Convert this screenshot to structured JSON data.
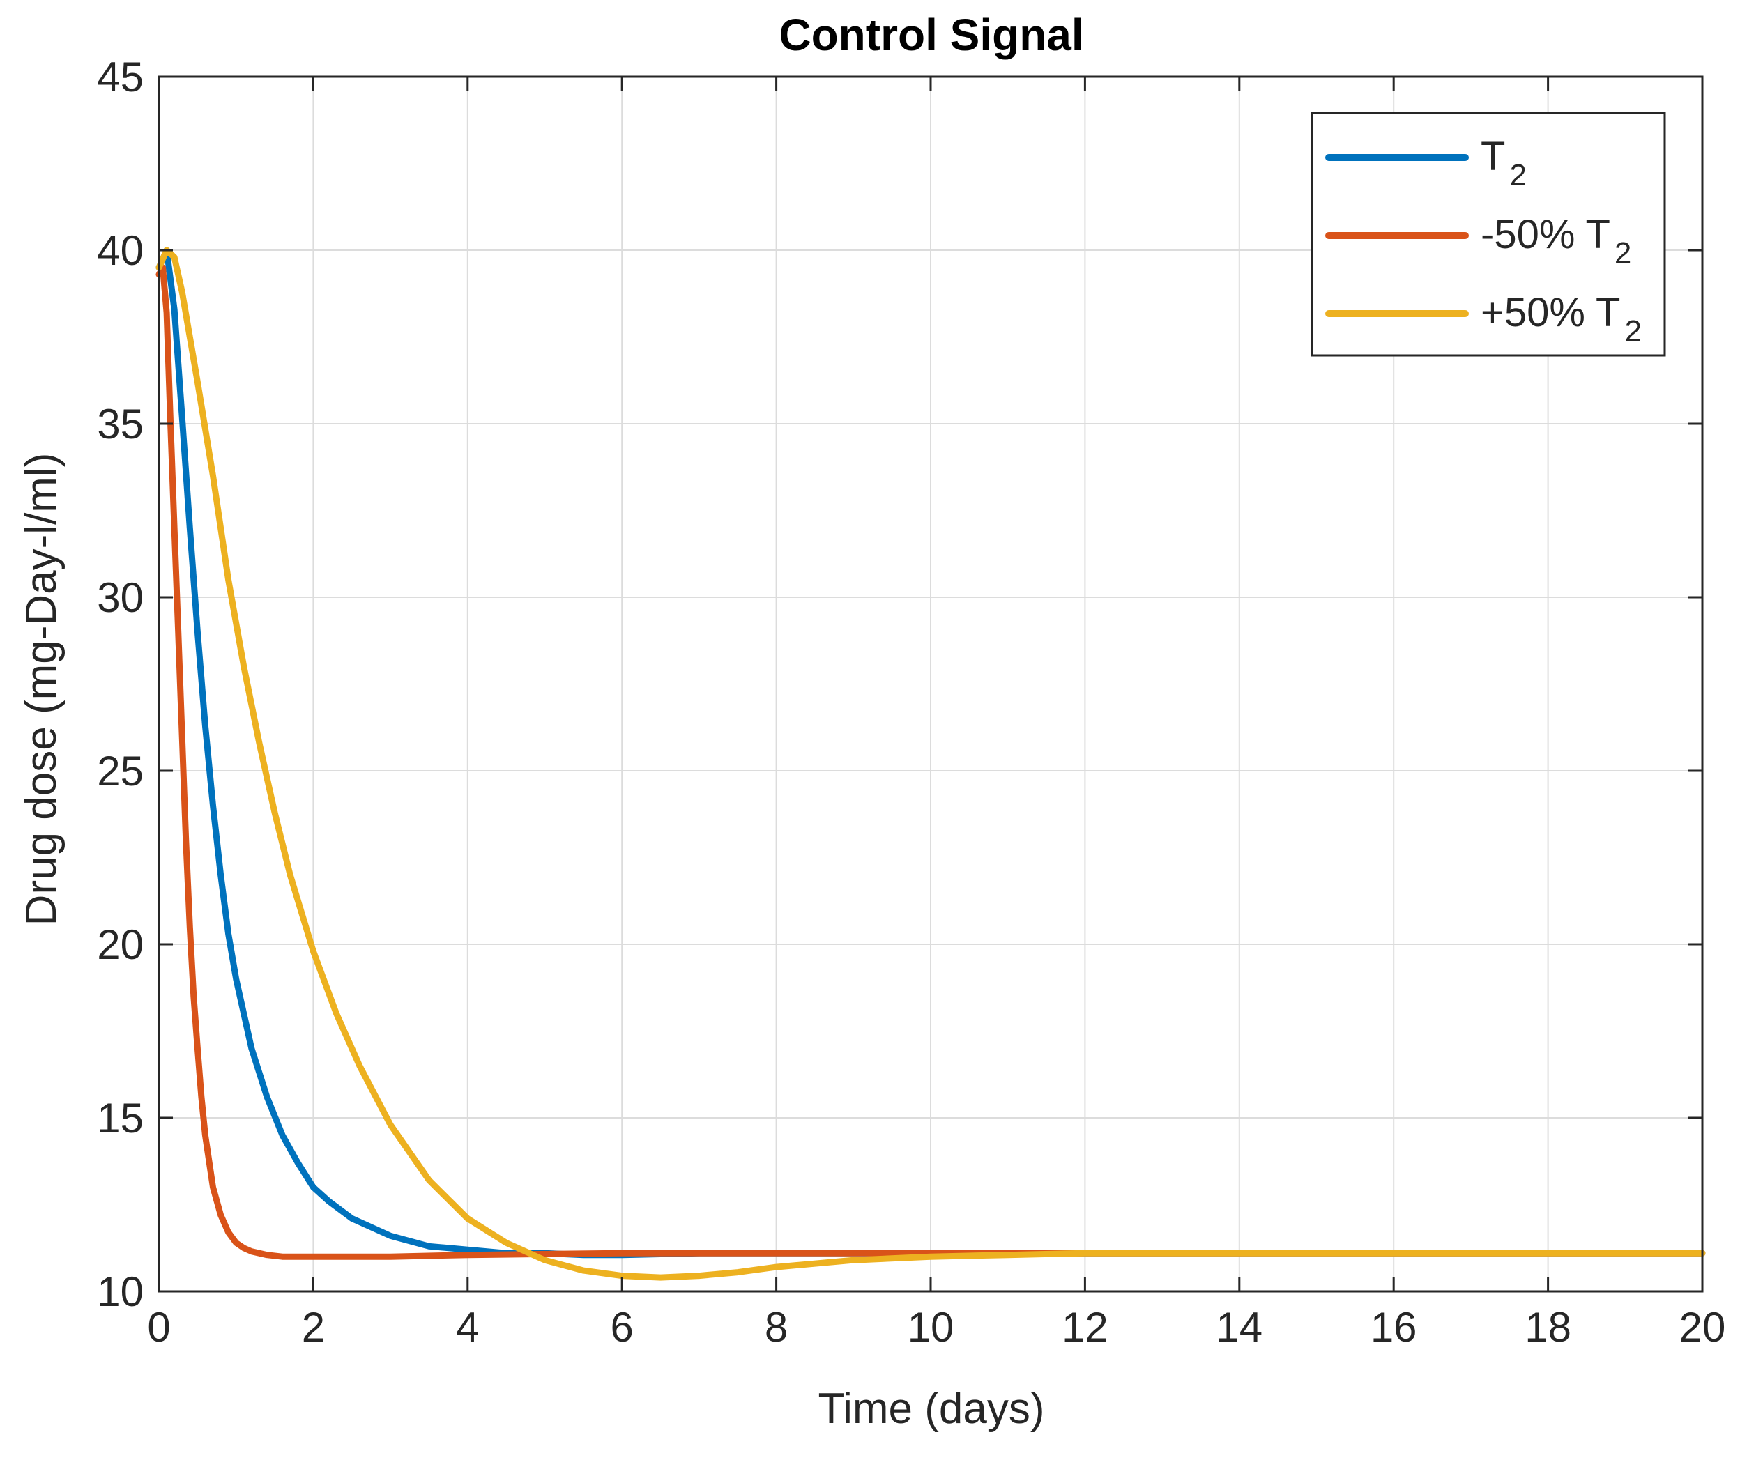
{
  "chart_data": {
    "type": "line",
    "title": "Control Signal",
    "xlabel": "Time (days)",
    "ylabel": "Drug dose (mg-Day-l/ml)",
    "xlim": [
      0,
      20
    ],
    "ylim": [
      10,
      45
    ],
    "xticks": [
      "0",
      "2",
      "4",
      "6",
      "8",
      "10",
      "12",
      "14",
      "16",
      "18",
      "20"
    ],
    "yticks": [
      "10",
      "15",
      "20",
      "25",
      "30",
      "35",
      "40",
      "45"
    ],
    "grid": true,
    "legend_position": "top-right",
    "series": [
      {
        "name": "T",
        "name_subscript": "2",
        "color": "#0072BD",
        "x": [
          0,
          0.1,
          0.2,
          0.3,
          0.4,
          0.5,
          0.6,
          0.7,
          0.8,
          0.9,
          1.0,
          1.2,
          1.4,
          1.6,
          1.8,
          2.0,
          2.2,
          2.5,
          3.0,
          3.5,
          4.0,
          4.5,
          5.0,
          5.5,
          6.0,
          7.0,
          8.0,
          10.0,
          12.0,
          14.0,
          16.0,
          18.0,
          20.0
        ],
        "y": [
          39.5,
          40.0,
          38.3,
          35.2,
          32.0,
          29.0,
          26.3,
          24.0,
          22.0,
          20.3,
          19.0,
          17.0,
          15.6,
          14.5,
          13.7,
          13.0,
          12.6,
          12.1,
          11.6,
          11.3,
          11.2,
          11.1,
          11.1,
          11.05,
          11.05,
          11.1,
          11.1,
          11.1,
          11.1,
          11.1,
          11.1,
          11.1,
          11.1
        ]
      },
      {
        "name": "-50% T",
        "name_subscript": "2",
        "color": "#D95319",
        "x": [
          0,
          0.05,
          0.1,
          0.15,
          0.2,
          0.25,
          0.3,
          0.35,
          0.4,
          0.45,
          0.5,
          0.55,
          0.6,
          0.7,
          0.8,
          0.9,
          1.0,
          1.1,
          1.2,
          1.4,
          1.6,
          1.8,
          2.0,
          3.0,
          4.0,
          6.0,
          8.0,
          10.0,
          12.0,
          14.0,
          16.0,
          18.0,
          20.0
        ],
        "y": [
          39.3,
          39.5,
          38.2,
          35.0,
          32.0,
          29.0,
          26.0,
          23.0,
          20.5,
          18.5,
          17.0,
          15.6,
          14.5,
          13.0,
          12.2,
          11.7,
          11.4,
          11.25,
          11.15,
          11.05,
          11.0,
          11.0,
          11.0,
          11.0,
          11.05,
          11.1,
          11.1,
          11.1,
          11.1,
          11.1,
          11.1,
          11.1,
          11.1
        ]
      },
      {
        "name": "+50% T",
        "name_subscript": "2",
        "color": "#EDB120",
        "x": [
          0,
          0.1,
          0.2,
          0.3,
          0.4,
          0.5,
          0.7,
          0.9,
          1.1,
          1.3,
          1.5,
          1.7,
          2.0,
          2.3,
          2.6,
          3.0,
          3.5,
          4.0,
          4.5,
          5.0,
          5.5,
          6.0,
          6.5,
          7.0,
          7.5,
          8.0,
          9.0,
          10.0,
          11.0,
          12.0,
          14.0,
          16.0,
          18.0,
          20.0
        ],
        "y": [
          39.5,
          40.0,
          39.8,
          38.8,
          37.5,
          36.2,
          33.5,
          30.5,
          28.0,
          25.8,
          23.8,
          22.0,
          19.8,
          18.0,
          16.5,
          14.8,
          13.2,
          12.1,
          11.4,
          10.9,
          10.6,
          10.45,
          10.4,
          10.45,
          10.55,
          10.7,
          10.9,
          11.0,
          11.05,
          11.1,
          11.1,
          11.1,
          11.1,
          11.1
        ]
      }
    ]
  }
}
